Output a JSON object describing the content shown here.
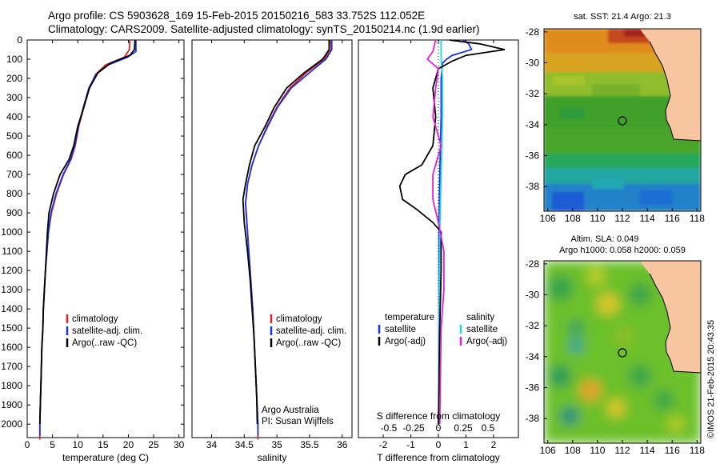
{
  "header": {
    "line1": "Argo profile: CS 5903628_169 15-Feb-2015 20150216_583 33.752S 112.052E",
    "line2": "Climatology: CARS2009. Satellite-adjusted climatology: synTS_20150214.nc (1.9d earlier)"
  },
  "colors": {
    "climatology": "#e0201b",
    "satellite": "#1a35e0",
    "argo": "#000000",
    "sat_salinity": "#22d3f0",
    "argo_salinity": "#dd22d6",
    "land": "#f7c59f"
  },
  "chart_data": [
    {
      "id": "temperature_profile",
      "type": "line",
      "xlabel": "temperature (deg C)",
      "xlim": [
        0,
        31
      ],
      "xticks": [
        "0",
        "5",
        "10",
        "15",
        "20",
        "25",
        "30"
      ],
      "ylim": [
        0,
        2070
      ],
      "yticks": [
        "0",
        "100",
        "200",
        "300",
        "400",
        "500",
        "600",
        "700",
        "800",
        "900",
        "1000",
        "1100",
        "1200",
        "1300",
        "1400",
        "1500",
        "1600",
        "1700",
        "1800",
        "1900",
        "2000"
      ],
      "y_inverted": true,
      "legend": [
        "climatology",
        "satellite-adj. clim.",
        "Argo(..raw -QC)"
      ],
      "series": [
        {
          "name": "climatology",
          "color_key": "climatology",
          "points": [
            [
              20.3,
              0
            ],
            [
              20.2,
              50
            ],
            [
              19.2,
              90
            ],
            [
              15.5,
              130
            ],
            [
              13.5,
              180
            ],
            [
              12.3,
              250
            ],
            [
              11.2,
              350
            ],
            [
              10.2,
              450
            ],
            [
              9.5,
              550
            ],
            [
              8.7,
              620
            ],
            [
              7.2,
              700
            ],
            [
              5.8,
              800
            ],
            [
              4.8,
              900
            ],
            [
              4.2,
              1000
            ],
            [
              3.9,
              1100
            ],
            [
              3.6,
              1200
            ],
            [
              3.4,
              1300
            ],
            [
              3.2,
              1400
            ],
            [
              3.1,
              1500
            ],
            [
              2.9,
              1600
            ],
            [
              2.8,
              1700
            ],
            [
              2.7,
              1800
            ],
            [
              2.6,
              1900
            ],
            [
              2.5,
              2000
            ],
            [
              2.5,
              2080
            ]
          ]
        },
        {
          "name": "satellite-adj. clim.",
          "color_key": "satellite",
          "points": [
            [
              21.5,
              0
            ],
            [
              21.5,
              60
            ],
            [
              19.8,
              90
            ],
            [
              16,
              130
            ],
            [
              13.6,
              180
            ],
            [
              12.2,
              250
            ],
            [
              11.1,
              350
            ],
            [
              10.1,
              450
            ],
            [
              9.4,
              550
            ],
            [
              8.6,
              620
            ],
            [
              7.1,
              700
            ],
            [
              5.7,
              800
            ],
            [
              4.7,
              900
            ],
            [
              4.2,
              1000
            ],
            [
              3.9,
              1100
            ],
            [
              3.6,
              1200
            ],
            [
              3.4,
              1300
            ],
            [
              3.2,
              1400
            ],
            [
              3.1,
              1500
            ],
            [
              2.9,
              1600
            ],
            [
              2.8,
              1700
            ],
            [
              2.7,
              1800
            ],
            [
              2.6,
              1900
            ],
            [
              2.5,
              2000
            ],
            [
              2.5,
              2060
            ]
          ]
        },
        {
          "name": "Argo(..raw -QC)",
          "color_key": "argo",
          "points": [
            [
              21.3,
              0
            ],
            [
              21.2,
              50
            ],
            [
              20.3,
              80
            ],
            [
              16.5,
              120
            ],
            [
              14,
              170
            ],
            [
              12.3,
              250
            ],
            [
              11.2,
              350
            ],
            [
              10,
              450
            ],
            [
              9.2,
              550
            ],
            [
              8.3,
              620
            ],
            [
              6.5,
              700
            ],
            [
              5.2,
              800
            ],
            [
              4.3,
              900
            ],
            [
              4,
              1000
            ],
            [
              3.8,
              1100
            ],
            [
              3.6,
              1200
            ],
            [
              3.4,
              1300
            ],
            [
              3.2,
              1400
            ],
            [
              3.1,
              1500
            ],
            [
              2.9,
              1600
            ],
            [
              2.8,
              1700
            ],
            [
              2.7,
              1800
            ],
            [
              2.6,
              1900
            ],
            [
              2.5,
              2000
            ]
          ]
        }
      ]
    },
    {
      "id": "salinity_profile",
      "type": "line",
      "xlabel": "salinity",
      "xlim": [
        33.7,
        36.15
      ],
      "xticks": [
        "34",
        "34.5",
        "35",
        "35.5",
        "36"
      ],
      "ylim": [
        0,
        2070
      ],
      "y_inverted": true,
      "legend": [
        "climatology",
        "satellite-adj. clim.",
        "Argo(..raw -QC)"
      ],
      "annotation": [
        "Argo Australia",
        "PI: Susan Wijffels"
      ],
      "series": [
        {
          "name": "climatology",
          "color_key": "climatology",
          "points": [
            [
              35.82,
              0
            ],
            [
              35.83,
              50
            ],
            [
              35.72,
              100
            ],
            [
              35.45,
              170
            ],
            [
              35.2,
              250
            ],
            [
              35.0,
              350
            ],
            [
              34.85,
              450
            ],
            [
              34.72,
              550
            ],
            [
              34.62,
              650
            ],
            [
              34.55,
              750
            ],
            [
              34.52,
              850
            ],
            [
              34.54,
              950
            ],
            [
              34.57,
              1100
            ],
            [
              34.6,
              1250
            ],
            [
              34.63,
              1400
            ],
            [
              34.65,
              1550
            ],
            [
              34.67,
              1700
            ],
            [
              34.69,
              1850
            ],
            [
              34.71,
              2000
            ],
            [
              34.71,
              2080
            ]
          ]
        },
        {
          "name": "satellite-adj. clim.",
          "color_key": "satellite",
          "points": [
            [
              35.84,
              0
            ],
            [
              35.84,
              50
            ],
            [
              35.75,
              100
            ],
            [
              35.5,
              170
            ],
            [
              35.22,
              250
            ],
            [
              35.01,
              350
            ],
            [
              34.86,
              450
            ],
            [
              34.72,
              550
            ],
            [
              34.62,
              650
            ],
            [
              34.55,
              750
            ],
            [
              34.52,
              850
            ],
            [
              34.54,
              950
            ],
            [
              34.57,
              1100
            ],
            [
              34.6,
              1250
            ],
            [
              34.63,
              1400
            ],
            [
              34.65,
              1550
            ],
            [
              34.67,
              1700
            ],
            [
              34.69,
              1850
            ],
            [
              34.71,
              2000
            ],
            [
              34.71,
              2060
            ]
          ]
        },
        {
          "name": "Argo(..raw -QC)",
          "color_key": "argo",
          "points": [
            [
              35.8,
              0
            ],
            [
              35.8,
              50
            ],
            [
              35.7,
              100
            ],
            [
              35.42,
              170
            ],
            [
              35.15,
              250
            ],
            [
              34.96,
              350
            ],
            [
              34.82,
              450
            ],
            [
              34.66,
              550
            ],
            [
              34.58,
              650
            ],
            [
              34.52,
              750
            ],
            [
              34.48,
              830
            ],
            [
              34.5,
              950
            ],
            [
              34.55,
              1100
            ],
            [
              34.59,
              1250
            ],
            [
              34.62,
              1400
            ],
            [
              34.65,
              1550
            ],
            [
              34.67,
              1700
            ],
            [
              34.69,
              1850
            ],
            [
              34.7,
              2000
            ]
          ]
        }
      ]
    },
    {
      "id": "difference_profile",
      "type": "line",
      "xlabel": "T difference from climatology",
      "xlim": [
        -2.9,
        2.9
      ],
      "xticks": [
        "-2",
        "-1",
        "0",
        "1",
        "2"
      ],
      "top_xlabel": "S difference from climatology",
      "top_xticks": [
        "-0.5",
        "-0.25",
        "0",
        "0.25",
        "0.5"
      ],
      "ylim": [
        0,
        2070
      ],
      "y_inverted": true,
      "legend_titles": [
        "temperature",
        "salinity"
      ],
      "legend": [
        "satellite",
        "Argo(-adj)",
        "satellite",
        "Argo(-adj)"
      ],
      "series": [
        {
          "name": "temperature satellite",
          "color_key": "satellite",
          "points": [
            [
              0.9,
              0
            ],
            [
              1.1,
              20
            ],
            [
              1.2,
              50
            ],
            [
              0.5,
              80
            ],
            [
              0.3,
              100
            ],
            [
              0.15,
              120
            ],
            [
              0.1,
              200
            ],
            [
              0.1,
              400
            ],
            [
              0.05,
              700
            ],
            [
              0.02,
              1000
            ],
            [
              0.02,
              2000
            ]
          ]
        },
        {
          "name": "salinity satellite",
          "color_key": "sat_salinity",
          "points": [
            [
              0.1,
              0
            ],
            [
              0.1,
              100
            ],
            [
              0.15,
              200
            ],
            [
              0.15,
              400
            ],
            [
              0.1,
              700
            ],
            [
              0.05,
              1000
            ],
            [
              0.02,
              1500
            ],
            [
              0.01,
              2000
            ]
          ]
        },
        {
          "name": "temperature Argo(-adj)",
          "color_key": "argo",
          "points": [
            [
              0.4,
              0
            ],
            [
              1.5,
              20
            ],
            [
              2.4,
              50
            ],
            [
              1.0,
              80
            ],
            [
              0.5,
              110
            ],
            [
              0.0,
              150
            ],
            [
              -0.2,
              250
            ],
            [
              -0.1,
              400
            ],
            [
              -0.2,
              550
            ],
            [
              -0.6,
              650
            ],
            [
              -1.2,
              700
            ],
            [
              -1.4,
              760
            ],
            [
              -1.3,
              830
            ],
            [
              -0.8,
              880
            ],
            [
              -0.2,
              950
            ],
            [
              0.1,
              1000
            ],
            [
              0.1,
              1200
            ],
            [
              0.05,
              1500
            ],
            [
              0,
              2000
            ]
          ]
        },
        {
          "name": "salinity Argo(-adj)",
          "color_key": "argo_salinity",
          "points": [
            [
              -0.1,
              0
            ],
            [
              -0.2,
              60
            ],
            [
              -0.4,
              100
            ],
            [
              0.0,
              150
            ],
            [
              -0.1,
              250
            ],
            [
              -0.2,
              400
            ],
            [
              0.1,
              550
            ],
            [
              -0.2,
              700
            ],
            [
              -0.2,
              830
            ],
            [
              0.0,
              950
            ],
            [
              0.2,
              1100
            ],
            [
              0.2,
              1300
            ],
            [
              0.1,
              1500
            ],
            [
              0.05,
              2000
            ]
          ]
        }
      ]
    },
    {
      "id": "sst_map",
      "type": "heatmap",
      "title": "sat. SST: 21.4 Argo: 21.3",
      "xticks": [
        "106",
        "108",
        "110",
        "112",
        "114",
        "116",
        "118"
      ],
      "yticks": [
        "-28",
        "-30",
        "-32",
        "-34",
        "-36",
        "-38"
      ],
      "xlim": [
        105.7,
        118.3
      ],
      "ylim": [
        -39.6,
        -27.8
      ],
      "float_location": [
        112.05,
        -33.75
      ]
    },
    {
      "id": "sla_map",
      "type": "heatmap",
      "title_lines": [
        "Altim. SLA: 0.049",
        "Argo h1000: 0.058 h2000: 0.059"
      ],
      "xticks": [
        "106",
        "108",
        "110",
        "112",
        "114",
        "116",
        "118"
      ],
      "yticks": [
        "-28",
        "-30",
        "-32",
        "-34",
        "-36",
        "-38"
      ],
      "xlim": [
        105.7,
        118.3
      ],
      "ylim": [
        -39.6,
        -27.8
      ],
      "float_location": [
        112.05,
        -33.75
      ]
    }
  ],
  "credit": "©IMOS 21-Feb-2015 20:43:35"
}
